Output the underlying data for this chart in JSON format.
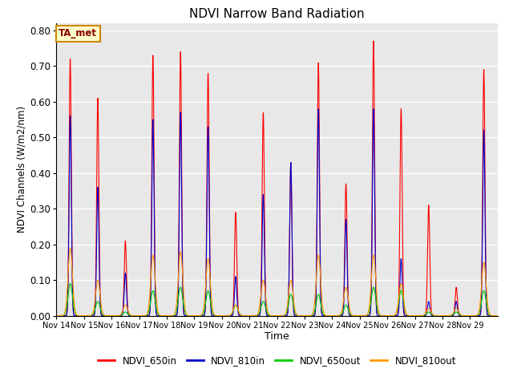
{
  "title": "NDVI Narrow Band Radiation",
  "xlabel": "Time",
  "ylabel": "NDVI Channels (W/m2/nm)",
  "ylim": [
    0.0,
    0.82
  ],
  "yticks": [
    0.0,
    0.1,
    0.2,
    0.3,
    0.4,
    0.5,
    0.6,
    0.7,
    0.8
  ],
  "xtick_labels": [
    "Nov 14",
    "Nov 15",
    "Nov 16",
    "Nov 17",
    "Nov 18",
    "Nov 19",
    "Nov 20",
    "Nov 21",
    "Nov 22",
    "Nov 23",
    "Nov 24",
    "Nov 25",
    "Nov 26",
    "Nov 27",
    "Nov 28",
    "Nov 29"
  ],
  "annotation_text": "TA_met",
  "bg_color": "#e8e8e8",
  "colors": {
    "NDVI_650in": "#ff0000",
    "NDVI_810in": "#0000cc",
    "NDVI_650out": "#00cc00",
    "NDVI_810out": "#ff9900"
  },
  "legend_labels": [
    "NDVI_650in",
    "NDVI_810in",
    "NDVI_650out",
    "NDVI_810out"
  ],
  "peaks_650in": [
    0.72,
    0.61,
    0.21,
    0.73,
    0.74,
    0.68,
    0.29,
    0.57,
    0.43,
    0.71,
    0.37,
    0.77,
    0.58,
    0.31,
    0.08,
    0.69
  ],
  "peaks_810in": [
    0.56,
    0.36,
    0.12,
    0.55,
    0.57,
    0.53,
    0.11,
    0.34,
    0.43,
    0.58,
    0.27,
    0.58,
    0.16,
    0.04,
    0.04,
    0.52
  ],
  "peaks_650out": [
    0.09,
    0.04,
    0.01,
    0.07,
    0.08,
    0.07,
    0.03,
    0.04,
    0.06,
    0.06,
    0.03,
    0.08,
    0.07,
    0.01,
    0.01,
    0.07
  ],
  "peaks_810out": [
    0.19,
    0.1,
    0.03,
    0.17,
    0.18,
    0.16,
    0.03,
    0.1,
    0.1,
    0.17,
    0.08,
    0.17,
    0.09,
    0.02,
    0.02,
    0.15
  ],
  "sigma_in": 0.04,
  "sigma_out": 0.08
}
